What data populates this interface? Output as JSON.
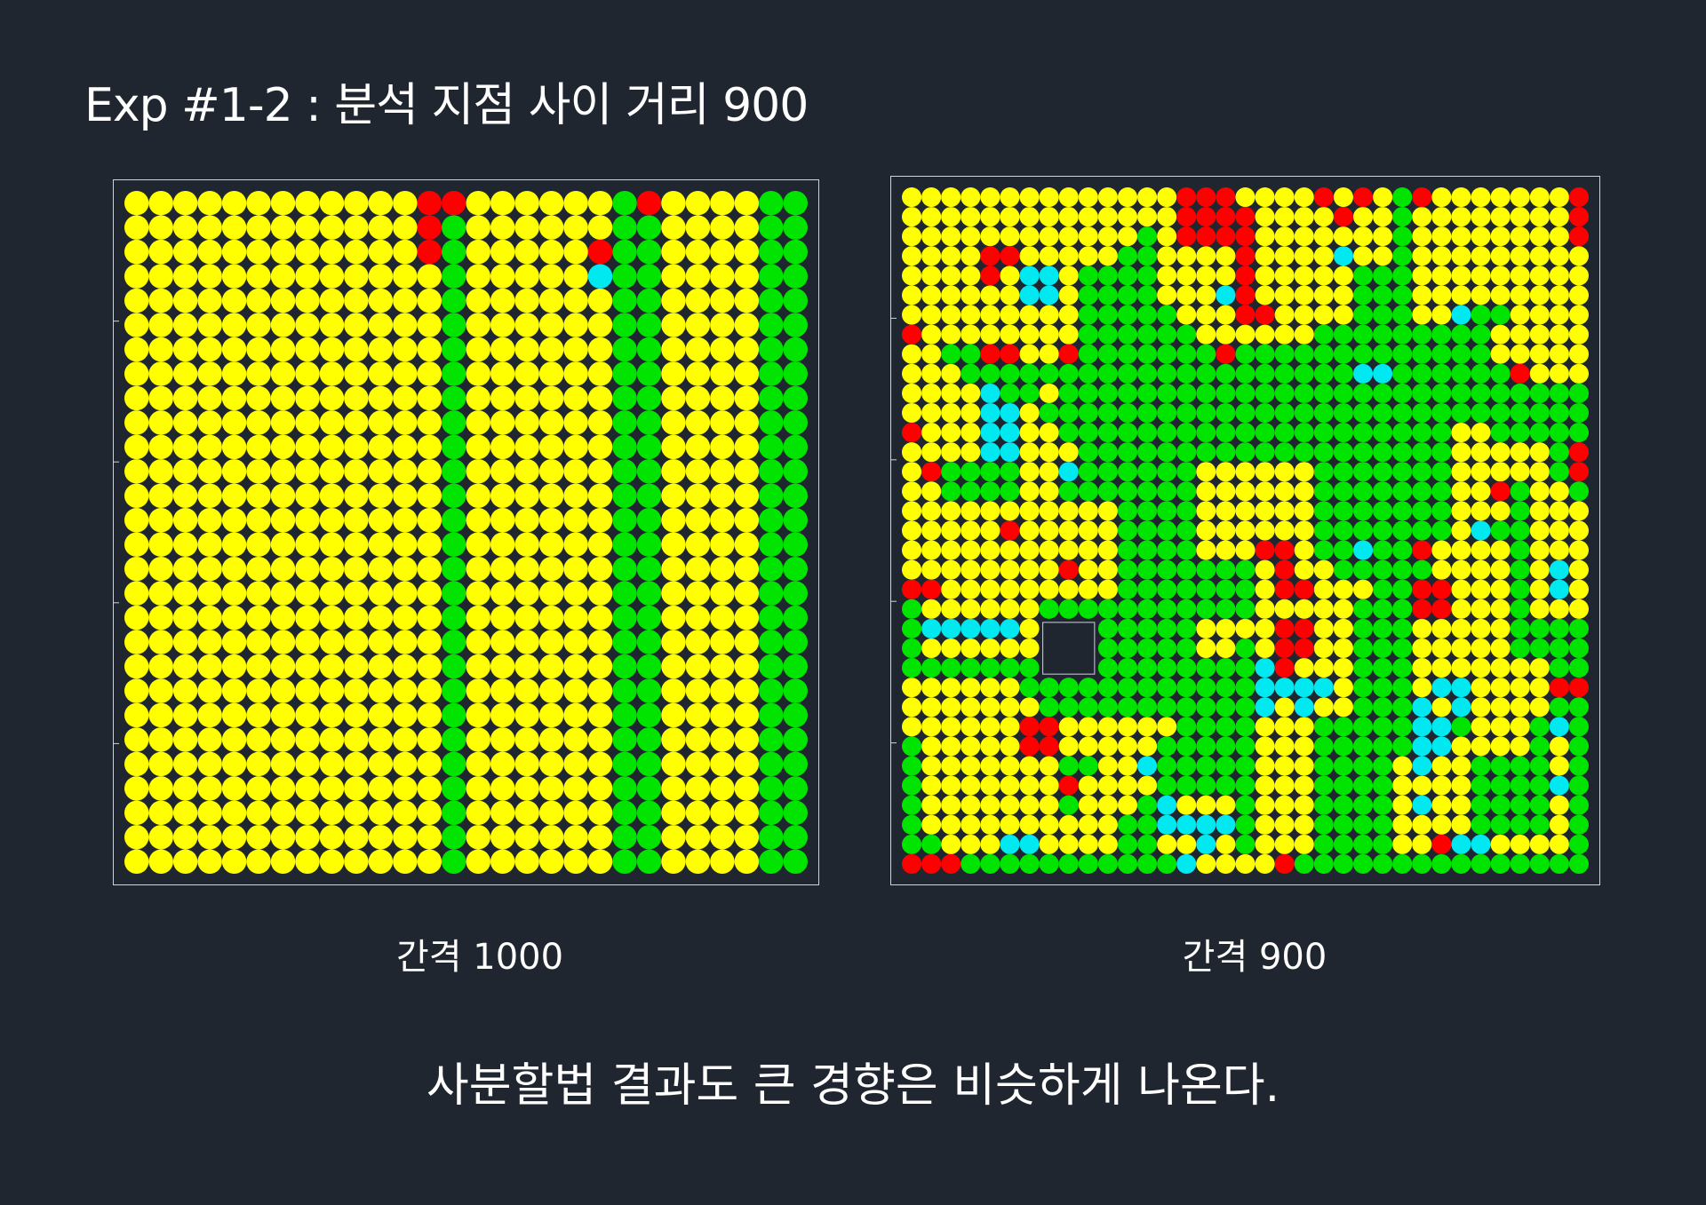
{
  "title": "Exp #1-2 : 분석 지점 사이 거리 900",
  "conclusion": "사분할법 결과도 큰 경향은 비슷하게 나온다.",
  "colors": {
    "Y": "#ffff00",
    "G": "#00e400",
    "R": "#ff0000",
    "C": "#00e8f0",
    "background": "#20262f"
  },
  "chart_data": [
    {
      "type": "heatmap",
      "caption": "간격 1000",
      "legend": {
        "Y": "yellow",
        "G": "green",
        "R": "red",
        "C": "cyan",
        "-": "empty"
      },
      "rows": [
        "YYYYYYYYYYYYRRYYYYYYGRYYYYGG",
        "YYYYYYYYYYYYRGYYYYYYGGYYYYGG",
        "YYYYYYYYYYYYRGYYYYYRGGYYYYGG",
        "YYYYYYYYYYYYYGYYYYYCGGYYYYGG",
        "YYYYYYYYYYYYYGYYYYYYGGYYYYGG",
        "YYYYYYYYYYYYYGYYYYYYGGYYYYGG",
        "YYYYYYYYYYYYYGYYYYYYGGYYYYGG",
        "YYYYYYYYYYYYYGYYYYYYGGYYYYGG",
        "YYYYYYYYYYYYYGYYYYYYGGYYYYGG",
        "YYYYYYYYYYYYYGYYYYYYGGYYYYGG",
        "YYYYYYYYYYYYYGYYYYYYGGYYYYGG",
        "YYYYYYYYYYYYYGYYYYYYGGYYYYGG",
        "YYYYYYYYYYYYYGYYYYYYGGYYYYGG",
        "YYYYYYYYYYYYYGYYYYYYGGYYYYGG",
        "YYYYYYYYYYYYYGYYYYYYGGYYYYGG",
        "YYYYYYYYYYYYYGYYYYYYGGYYYYGG",
        "YYYYYYYYYYYYYGYYYYYYGGYYYYGG",
        "YYYYYYYYYYYYYGYYYYYYGGYYYYGG",
        "YYYYYYYYYYYYYGYYYYYYGGYYYYGG",
        "YYYYYYYYYYYYYGYYYYYYGGYYYYGG",
        "YYYYYYYYYYYYYGYYYYYYGGYYYYGG",
        "YYYYYYYYYYYYYGYYYYYYGGYYYYGG",
        "YYYYYYYYYYYYYGYYYYYYGGYYYYGG",
        "YYYYYYYYYYYYYGYYYYYYGGYYYYGG",
        "YYYYYYYYYYYYYGYYYYYYGGYYYYGG",
        "YYYYYYYYYYYYYGYYYYYYGGYYYYGG",
        "YYYYYYYYYYYYYGYYYYYYGGYYYYGG",
        "YYYYYYYYYYYYYGYYYYYYGGYYYYGG"
      ]
    },
    {
      "type": "heatmap",
      "caption": "간격 900",
      "legend": {
        "Y": "yellow",
        "G": "green",
        "R": "red",
        "C": "cyan",
        "-": "empty"
      },
      "rows": [
        "YYYYYYYYYYYYYYRRRYYYYRYRYGRYYYYYYYR",
        "YYYYYYYYYYYYYYRRRRYYYYRYYGYYYYYYYYR",
        "YYYYYYYYYYYYGYRRRRYYYYYYYGYYYYYYYYR",
        "YYYYRRYYYYYGGYYYYRYYYYCYYGYYYYYYYYY",
        "YYYYRYCCYGGGGYYYYRYYYYYGGGYYYYYYYYY",
        "YYYYYYCCYGGGGYYYCRYYYYYGGGYYYYYYYYY",
        "YYYYYYYYYGGGGGYYYRRYYYYGGGYYCGGYYYY",
        "RYYYYYYYYGGGGGGYYYYYYGGGGGGGGGYYYYY",
        "YYGGRRYYRGGGGGGGRGGGGGGGGGGGGGYYYYY",
        "YYYGGGGGGGGGGGGGGGGGGGGCCGGGGGGRYYY",
        "YYYYCGGYGGGGGGGGGGGGGGGGGGGGGGGGGGG",
        "YYYYCCYGGGGGGGGGGGGGGGGGGGGGGGGGGGG",
        "RYYYCCYYGGGGGGGGGGGGGGGGGGGGYYGGGGG",
        "YYYYCCYYYGGGGGGGGGGGGGGGGGGGYYYYYGR",
        "YRGGGGYYCGGGGGGYYYYYYGGGGGGGYYYYYGR",
        "YYGGGGYYGGGGGGGYYYYYYGGGGGGGYYRGYYG",
        "YYYYYYYYYYYGGGGYYYYYYGGGGGGGYYYGYYY",
        "YYYYYRYYYYYGGGGYYYYYYGGGGGGGYCGGYYY",
        "YYYYYYYYYYYGGGGYYYRRYGGCGGRYYYYGYYY",
        "YYYYYYYYRYYGGGGGGGYRYYGGGGGYYYYGYCY",
        "RRYYYYYYYYYGGGGGGGYRRYYYGGRRYYYGYCY",
        "GYYYYYYGGGGGGGGGGGYYYYYGGGRRYYYGYYY",
        "GCCCCCY---GGGGGYYYYRRYYGGGYYYYYGGGG",
        "GYYYYYY---GGGGGYYGYRRYYGGGYYYYYGGGG",
        "GGGGGGG---GGGGGGGGCRYYYGGGYYYYYYYGG",
        "YYYYYYGGGGGGGGGGGGCCCCYGGGYCCYYYYRR",
        "YYYYYYYGGGGGGGGGGGCYCYYGGGCYCYYYYGG",
        "YYYYYYRRYYYYYYGGGGYYYGGGGGCCGYYYGCG",
        "GYYYYYRRYYYYYGGGGGYYYGGGGGCCYYYYGYG",
        "GYYYYYYYGGYYCGGGGGYYYGGGGYCYYGGGGYG",
        "GYYYYYYYRYYYYGGGGGYYYGGGGYYYYGGGGCG",
        "GYYYYYYYGYYYGCYYYGYYYGGGGYCYYGGGGYG",
        "GYYYYYYYYYYGGCCCCGYYYGGGGYYYYGGGGYG",
        "GGYYYCCYYYYGGYYCYGYYYGGGGYYRCCYYYYG",
        "RRRGGGGGGGGGGGCYYYYRGGGGGGGGGGGGGGG"
      ]
    }
  ]
}
